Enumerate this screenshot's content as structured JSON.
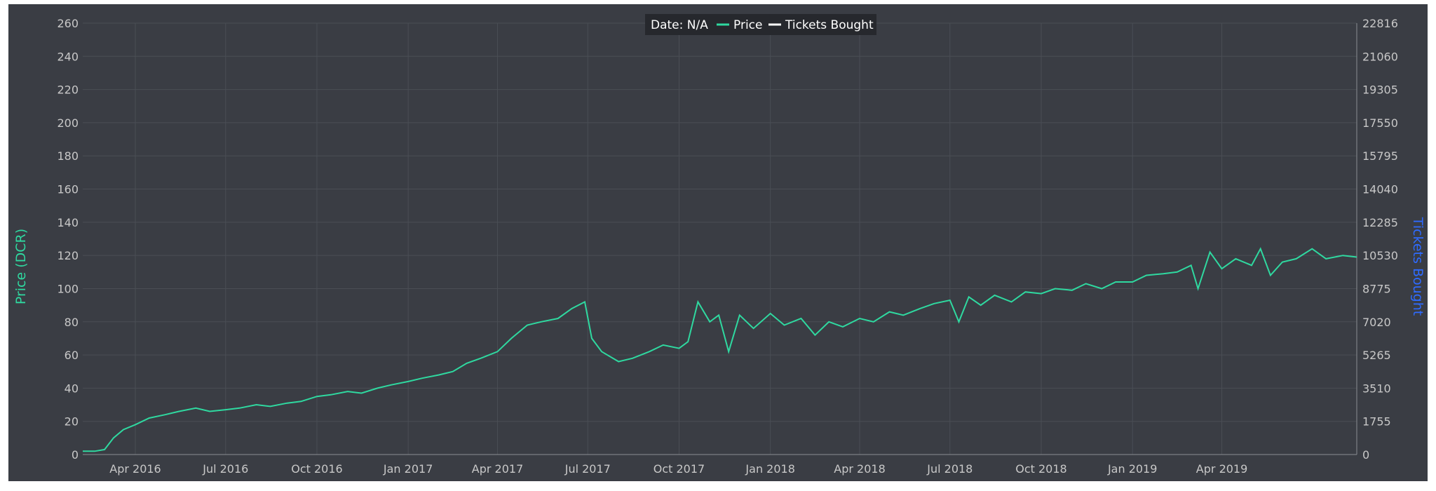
{
  "chart_data": {
    "type": "line",
    "title": "",
    "legend": {
      "placement": "top-center",
      "date_label": "Date: N/A",
      "entries": [
        {
          "name": "Price",
          "color": "#2fd9a0"
        },
        {
          "name": "Tickets Bought",
          "color": "#ffffff"
        }
      ]
    },
    "y_left": {
      "label": "Price (DCR)",
      "label_color": "#2fd9a0",
      "range": [
        0,
        260
      ],
      "ticks": [
        "0",
        "20",
        "40",
        "60",
        "80",
        "100",
        "120",
        "140",
        "160",
        "180",
        "200",
        "220",
        "240",
        "260"
      ]
    },
    "y_right": {
      "label": "Tickets Bought",
      "label_color": "#2e6bff",
      "range": [
        0,
        22816
      ],
      "ticks": [
        "0",
        "1755",
        "3510",
        "5265",
        "7020",
        "8775",
        "10530",
        "12285",
        "14040",
        "15795",
        "17550",
        "19305",
        "21060",
        "22816"
      ]
    },
    "x_axis": {
      "type": "date",
      "range": [
        "2016-02-08",
        "2019-08-15"
      ],
      "ticks": [
        {
          "label": "Apr 2016",
          "date": "2016-04-01"
        },
        {
          "label": "Jul 2016",
          "date": "2016-07-01"
        },
        {
          "label": "Oct 2016",
          "date": "2016-10-01"
        },
        {
          "label": "Jan 2017",
          "date": "2017-01-01"
        },
        {
          "label": "Apr 2017",
          "date": "2017-04-01"
        },
        {
          "label": "Jul 2017",
          "date": "2017-07-01"
        },
        {
          "label": "Oct 2017",
          "date": "2017-10-01"
        },
        {
          "label": "Jan 2018",
          "date": "2018-01-01"
        },
        {
          "label": "Apr 2018",
          "date": "2018-04-01"
        },
        {
          "label": "Jul 2018",
          "date": "2018-07-01"
        },
        {
          "label": "Oct 2018",
          "date": "2018-10-01"
        },
        {
          "label": "Jan 2019",
          "date": "2019-01-01"
        },
        {
          "label": "Apr 2019",
          "date": "2019-04-01"
        }
      ]
    },
    "grid": true,
    "colors": {
      "background": "#3a3d44",
      "grid": "#4a4e55",
      "price": "#2fd9a0"
    },
    "series": [
      {
        "name": "Price",
        "color": "#2fd9a0",
        "points": [
          [
            "2016-02-08",
            2
          ],
          [
            "2016-02-20",
            2
          ],
          [
            "2016-03-01",
            3
          ],
          [
            "2016-03-10",
            10
          ],
          [
            "2016-03-20",
            15
          ],
          [
            "2016-04-01",
            18
          ],
          [
            "2016-04-15",
            22
          ],
          [
            "2016-05-01",
            24
          ],
          [
            "2016-05-15",
            26
          ],
          [
            "2016-06-01",
            28
          ],
          [
            "2016-06-15",
            26
          ],
          [
            "2016-07-01",
            27
          ],
          [
            "2016-07-15",
            28
          ],
          [
            "2016-08-01",
            30
          ],
          [
            "2016-08-15",
            29
          ],
          [
            "2016-09-01",
            31
          ],
          [
            "2016-09-15",
            32
          ],
          [
            "2016-10-01",
            35
          ],
          [
            "2016-10-15",
            36
          ],
          [
            "2016-11-01",
            38
          ],
          [
            "2016-11-15",
            37
          ],
          [
            "2016-12-01",
            40
          ],
          [
            "2016-12-15",
            42
          ],
          [
            "2017-01-01",
            44
          ],
          [
            "2017-01-15",
            46
          ],
          [
            "2017-02-01",
            48
          ],
          [
            "2017-02-15",
            50
          ],
          [
            "2017-03-01",
            55
          ],
          [
            "2017-03-15",
            58
          ],
          [
            "2017-04-01",
            62
          ],
          [
            "2017-04-15",
            70
          ],
          [
            "2017-05-01",
            78
          ],
          [
            "2017-05-15",
            80
          ],
          [
            "2017-06-01",
            82
          ],
          [
            "2017-06-15",
            88
          ],
          [
            "2017-06-28",
            92
          ],
          [
            "2017-07-05",
            70
          ],
          [
            "2017-07-15",
            62
          ],
          [
            "2017-08-01",
            56
          ],
          [
            "2017-08-15",
            58
          ],
          [
            "2017-09-01",
            62
          ],
          [
            "2017-09-15",
            66
          ],
          [
            "2017-10-01",
            64
          ],
          [
            "2017-10-10",
            68
          ],
          [
            "2017-10-20",
            92
          ],
          [
            "2017-11-01",
            80
          ],
          [
            "2017-11-10",
            84
          ],
          [
            "2017-11-20",
            62
          ],
          [
            "2017-12-01",
            84
          ],
          [
            "2017-12-15",
            76
          ],
          [
            "2018-01-01",
            85
          ],
          [
            "2018-01-15",
            78
          ],
          [
            "2018-02-01",
            82
          ],
          [
            "2018-02-15",
            72
          ],
          [
            "2018-03-01",
            80
          ],
          [
            "2018-03-15",
            77
          ],
          [
            "2018-04-01",
            82
          ],
          [
            "2018-04-15",
            80
          ],
          [
            "2018-05-01",
            86
          ],
          [
            "2018-05-15",
            84
          ],
          [
            "2018-06-01",
            88
          ],
          [
            "2018-06-15",
            91
          ],
          [
            "2018-07-01",
            93
          ],
          [
            "2018-07-10",
            80
          ],
          [
            "2018-07-20",
            95
          ],
          [
            "2018-08-01",
            90
          ],
          [
            "2018-08-15",
            96
          ],
          [
            "2018-09-01",
            92
          ],
          [
            "2018-09-15",
            98
          ],
          [
            "2018-10-01",
            97
          ],
          [
            "2018-10-15",
            100
          ],
          [
            "2018-11-01",
            99
          ],
          [
            "2018-11-15",
            103
          ],
          [
            "2018-12-01",
            100
          ],
          [
            "2018-12-15",
            104
          ],
          [
            "2019-01-01",
            104
          ],
          [
            "2019-01-15",
            108
          ],
          [
            "2019-02-01",
            109
          ],
          [
            "2019-02-15",
            110
          ],
          [
            "2019-03-01",
            114
          ],
          [
            "2019-03-08",
            100
          ],
          [
            "2019-03-20",
            122
          ],
          [
            "2019-04-01",
            112
          ],
          [
            "2019-04-15",
            118
          ],
          [
            "2019-05-01",
            114
          ],
          [
            "2019-05-10",
            124
          ],
          [
            "2019-05-20",
            108
          ],
          [
            "2019-06-01",
            116
          ],
          [
            "2019-06-15",
            118
          ],
          [
            "2019-07-01",
            124
          ],
          [
            "2019-07-15",
            118
          ],
          [
            "2019-08-01",
            120
          ],
          [
            "2019-08-15",
            119
          ]
        ]
      },
      {
        "name": "Tickets Bought",
        "color": "#ffffff",
        "points": []
      }
    ]
  }
}
